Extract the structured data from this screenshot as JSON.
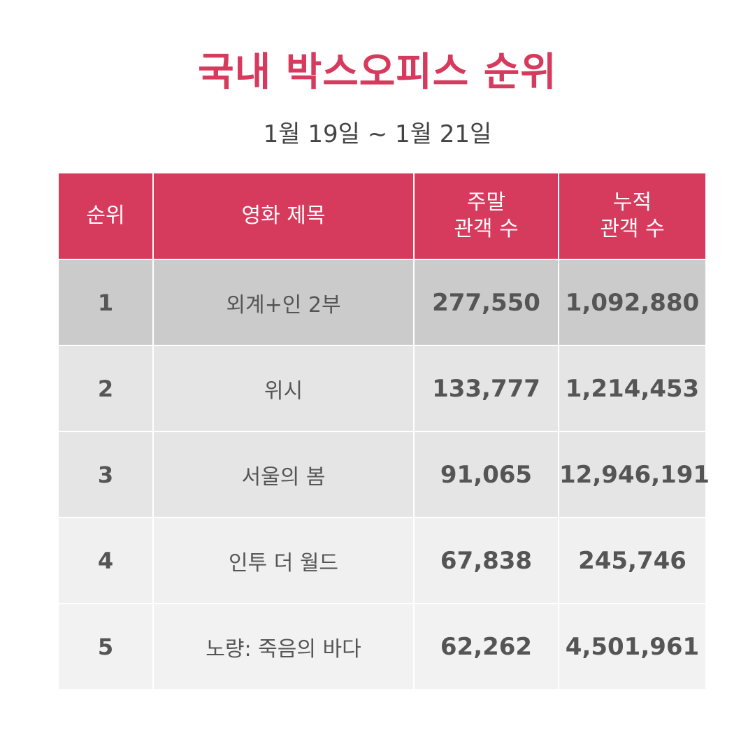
{
  "header": {
    "title": "국내 박스오피스 순위",
    "subtitle": "1월 19일 ~ 1월 21일"
  },
  "table": {
    "columns": {
      "rank": "순위",
      "movie_title": "영화 제목",
      "weekend_line1": "주말",
      "weekend_line2": "관객 수",
      "cumulative_line1": "누적",
      "cumulative_line2": "관객 수"
    },
    "rows": [
      {
        "rank": "1",
        "title": "외계+인 2부",
        "weekend": "277,550",
        "cumulative": "1,092,880"
      },
      {
        "rank": "2",
        "title": "위시",
        "weekend": "133,777",
        "cumulative": "1,214,453"
      },
      {
        "rank": "3",
        "title": "서울의 봄",
        "weekend": "91,065",
        "cumulative": "12,946,191"
      },
      {
        "rank": "4",
        "title": "인투 더 월드",
        "weekend": "67,838",
        "cumulative": "245,746"
      },
      {
        "rank": "5",
        "title": "노량: 죽음의 바다",
        "weekend": "62,262",
        "cumulative": "4,501,961"
      }
    ]
  },
  "colors": {
    "accent": "#d63a5c",
    "row_highlight": "#cbcbcb",
    "row_light": "#e5e5e5",
    "row_lighter": "#f2f2f2"
  }
}
